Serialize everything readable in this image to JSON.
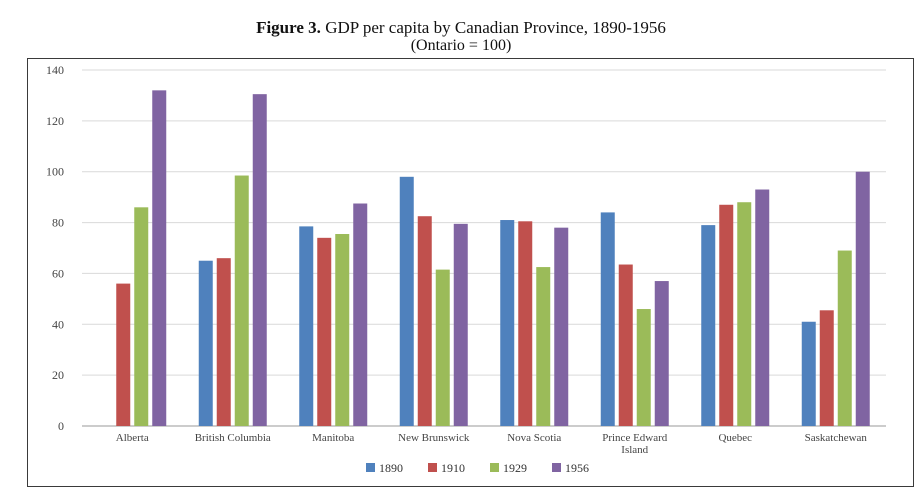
{
  "chart_data": {
    "type": "bar",
    "title_bold": "Figure 3.",
    "title_rest": " GDP per capita by Canadian Province, 1890-1956",
    "subtitle": "(Ontario = 100)",
    "xlabel": "",
    "ylabel": "",
    "ylim": [
      0,
      140
    ],
    "yticks": [
      0,
      20,
      40,
      60,
      80,
      100,
      120,
      140
    ],
    "grid": true,
    "legend_position": "bottom",
    "categories": [
      [
        "Alberta"
      ],
      [
        "British Columbia"
      ],
      [
        "Manitoba"
      ],
      [
        "New Brunswick"
      ],
      [
        "Nova Scotia"
      ],
      [
        "Prince Edward",
        "Island"
      ],
      [
        "Quebec"
      ],
      [
        "Saskatchewan"
      ]
    ],
    "series": [
      {
        "name": "1890",
        "color": "#4f81bd",
        "values": [
          null,
          65,
          78.5,
          98,
          81,
          84,
          79,
          41
        ]
      },
      {
        "name": "1910",
        "color": "#c0504d",
        "values": [
          56,
          66,
          74,
          82.5,
          80.5,
          63.5,
          87,
          45.5
        ]
      },
      {
        "name": "1929",
        "color": "#9bbb59",
        "values": [
          86,
          98.5,
          75.5,
          61.5,
          62.5,
          46,
          88,
          69
        ]
      },
      {
        "name": "1956",
        "color": "#8064a2",
        "values": [
          132,
          130.5,
          87.5,
          79.5,
          78,
          57,
          93,
          100
        ]
      }
    ]
  }
}
